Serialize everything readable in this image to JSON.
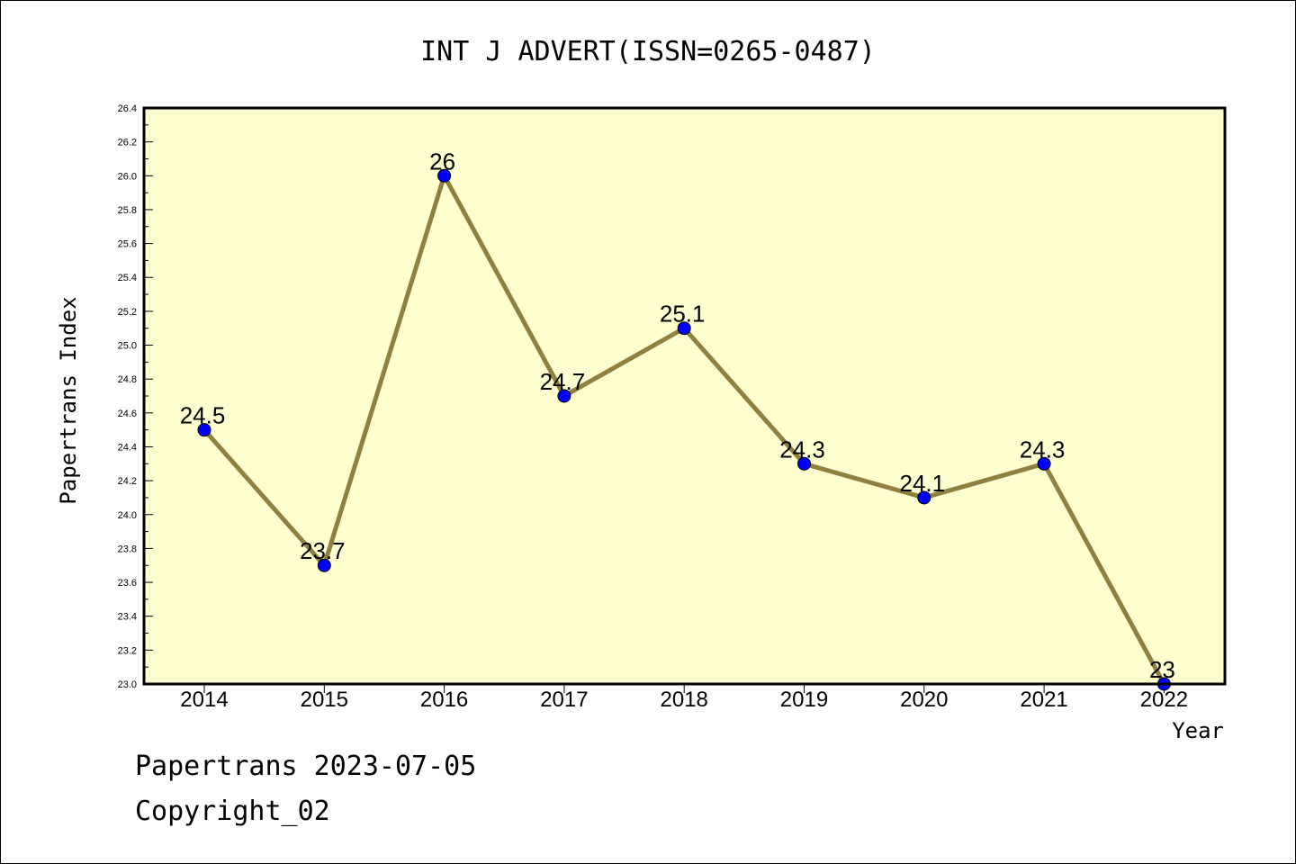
{
  "chart_data": {
    "type": "line",
    "title": "INT J ADVERT(ISSN=0265-0487)",
    "xlabel": "Year",
    "ylabel": "Papertrans Index",
    "categories": [
      "2014",
      "2015",
      "2016",
      "2017",
      "2018",
      "2019",
      "2020",
      "2021",
      "2022"
    ],
    "series": [
      {
        "values": [
          24.5,
          23.7,
          26,
          24.7,
          25.1,
          24.3,
          24.1,
          24.3,
          23
        ],
        "labels": [
          "24.5",
          "23.7",
          "26",
          "24.7",
          "25.1",
          "24.3",
          "24.1",
          "24.3",
          "23"
        ],
        "line_color": "#8f8040",
        "marker_color": "#0000ff"
      }
    ],
    "ylim": [
      23.0,
      26.4
    ],
    "yticks": [
      "23.0",
      "23.2",
      "23.4",
      "23.6",
      "23.8",
      "24.0",
      "24.2",
      "24.4",
      "24.6",
      "24.8",
      "25.0",
      "25.2",
      "25.4",
      "25.6",
      "25.8",
      "26.0",
      "26.2",
      "26.4"
    ],
    "grid": false,
    "plot_background": "#ffffd0",
    "legend": "none"
  },
  "footer": {
    "line1": "Papertrans 2023-07-05",
    "line2": "Copyright_02"
  }
}
